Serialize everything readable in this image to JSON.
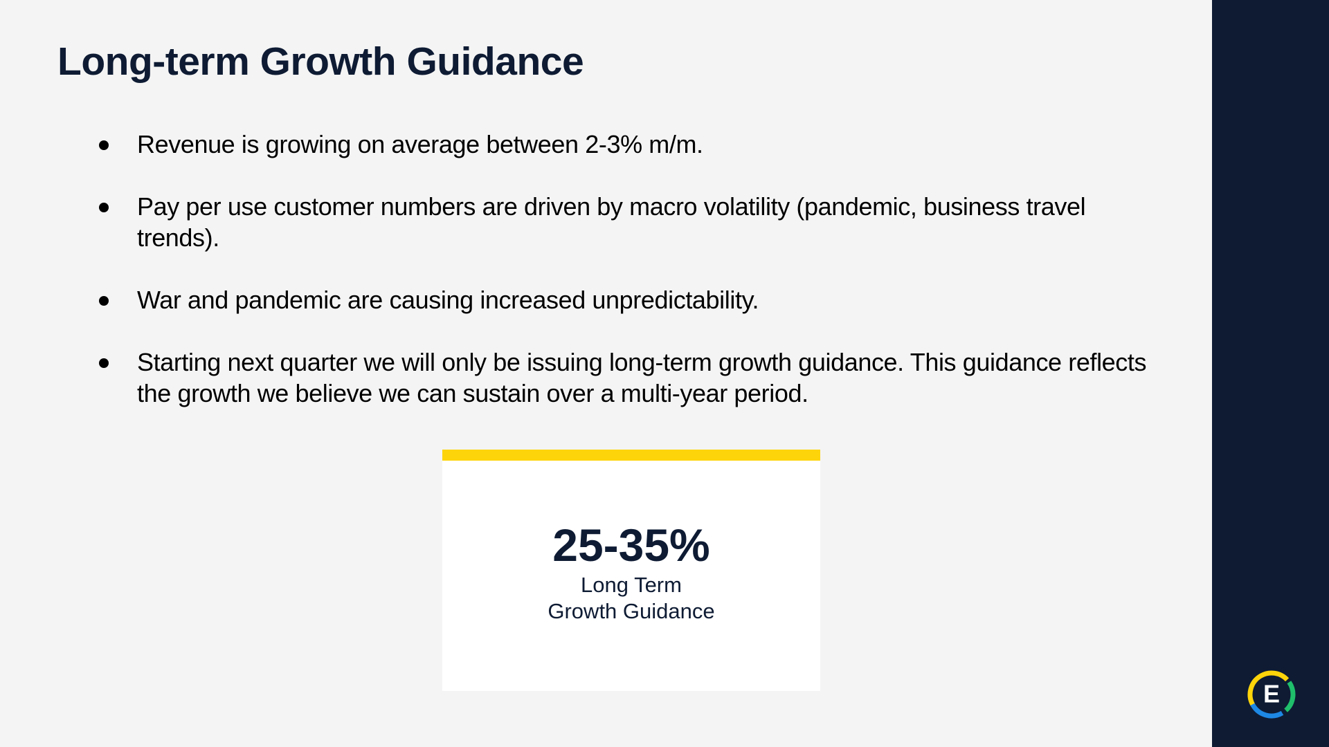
{
  "header": {
    "title": "Long-term Growth Guidance"
  },
  "bullets": [
    "Revenue is growing on average between 2-3% m/m.",
    "Pay per use customer numbers are driven by macro volatility (pandemic, business travel trends).",
    "War and pandemic are causing increased unpredictability.",
    "Starting next quarter we will only be issuing long-term growth guidance. This guidance reflects the growth we believe we can sustain over a multi-year period."
  ],
  "card": {
    "value": "25-35%",
    "label": "Long Term Growth Guidance"
  },
  "logo": {
    "letter": "E"
  }
}
